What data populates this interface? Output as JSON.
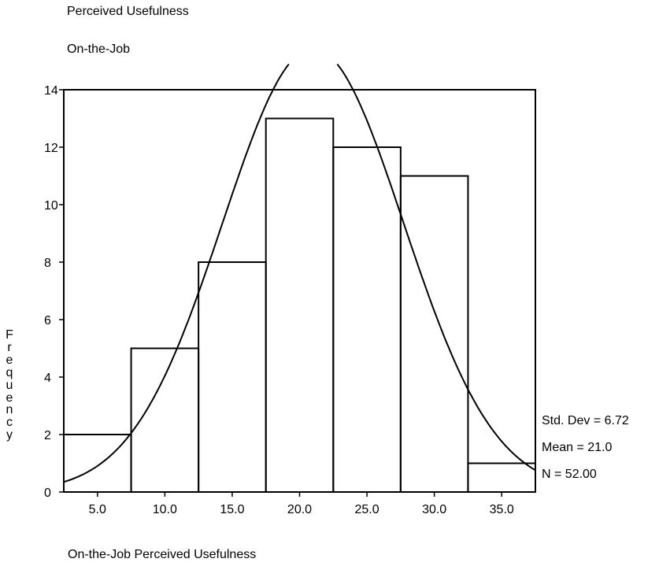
{
  "chart_data": {
    "type": "bar",
    "title": "Perceived Usefulness",
    "subtitle": "On-the-Job",
    "xlabel": "On-the-Job Perceived Usefulness",
    "ylabel": "Frequency",
    "categories": [
      "5.0",
      "10.0",
      "15.0",
      "20.0",
      "25.0",
      "30.0",
      "35.0"
    ],
    "bins": [
      {
        "low": 2.5,
        "high": 7.5,
        "value": 2
      },
      {
        "low": 7.5,
        "high": 12.5,
        "value": 5
      },
      {
        "low": 12.5,
        "high": 17.5,
        "value": 8
      },
      {
        "low": 17.5,
        "high": 22.5,
        "value": 13
      },
      {
        "low": 22.5,
        "high": 27.5,
        "value": 12
      },
      {
        "low": 27.5,
        "high": 32.5,
        "value": 11
      },
      {
        "low": 32.5,
        "high": 37.5,
        "value": 1
      }
    ],
    "xlim": [
      2.5,
      37.5
    ],
    "ylim": [
      0,
      14
    ],
    "yticks": [
      0,
      2,
      4,
      6,
      8,
      10,
      12,
      14
    ],
    "normal_curve": {
      "mean": 21.0,
      "std_dev": 6.72,
      "n": 52,
      "bin_width": 5
    },
    "stats": {
      "std_dev": "Std. Dev = 6.72",
      "mean": "Mean = 21.0",
      "n": "N = 52.00"
    }
  }
}
